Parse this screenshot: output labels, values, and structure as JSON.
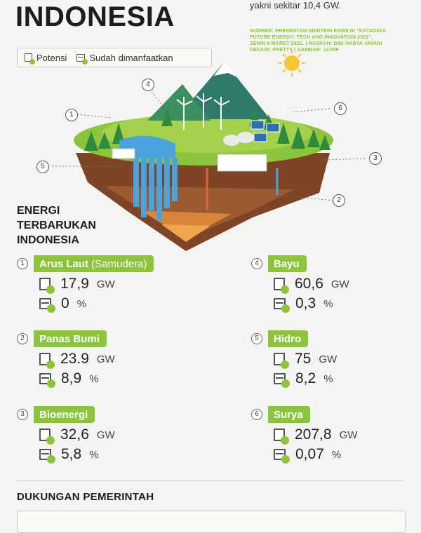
{
  "header": {
    "title": "INDONESIA",
    "note": "yakni sekitar 10,4 GW.",
    "source_lines": [
      "SUMBER: PRESENTASI MENTERI ESDM DI \"KATADATA",
      "FUTURE ENERGY: TECH AND INNOVATION 2021\",",
      "SENIN 8 MARET 2021. | NASKAH: DWI HADYA JAYANI",
      "DESAIN: PRETTY | GAMBAR: 123RF"
    ]
  },
  "legend": {
    "potensi": "Potensi",
    "dimanfaatkan": "Sudah dimanfaatkan"
  },
  "markers": [
    "1",
    "2",
    "3",
    "4",
    "5",
    "6"
  ],
  "section": {
    "title_lines": [
      "ENERGI",
      "TERBARUKAN",
      "INDONESIA"
    ]
  },
  "energies": [
    {
      "num": "1",
      "name": "Arus Laut",
      "sub": " (Samudera)",
      "potensi": "17,9",
      "unit": "GW",
      "pct": "0",
      "pct_unit": "%"
    },
    {
      "num": "2",
      "name": "Panas Bumi",
      "sub": "",
      "potensi": "23.9",
      "unit": "GW",
      "pct": "8,9",
      "pct_unit": "%"
    },
    {
      "num": "3",
      "name": "Bioenergi",
      "sub": "",
      "potensi": "32,6",
      "unit": "GW",
      "pct": "5,8",
      "pct_unit": "%"
    },
    {
      "num": "4",
      "name": "Bayu",
      "sub": "",
      "potensi": "60,6",
      "unit": "GW",
      "pct": "0,3",
      "pct_unit": "%"
    },
    {
      "num": "5",
      "name": "Hidro",
      "sub": "",
      "potensi": "75",
      "unit": "GW",
      "pct": "8,2",
      "pct_unit": "%"
    },
    {
      "num": "6",
      "name": "Surya",
      "sub": "",
      "potensi": "207,8",
      "unit": "GW",
      "pct": "0,07",
      "pct_unit": "%"
    }
  ],
  "footer": {
    "title": "DUKUNGAN PEMERINTAH"
  },
  "colors": {
    "accent": "#8cc43c",
    "soil": "#8a4a2a",
    "water": "#4aa3dc"
  }
}
